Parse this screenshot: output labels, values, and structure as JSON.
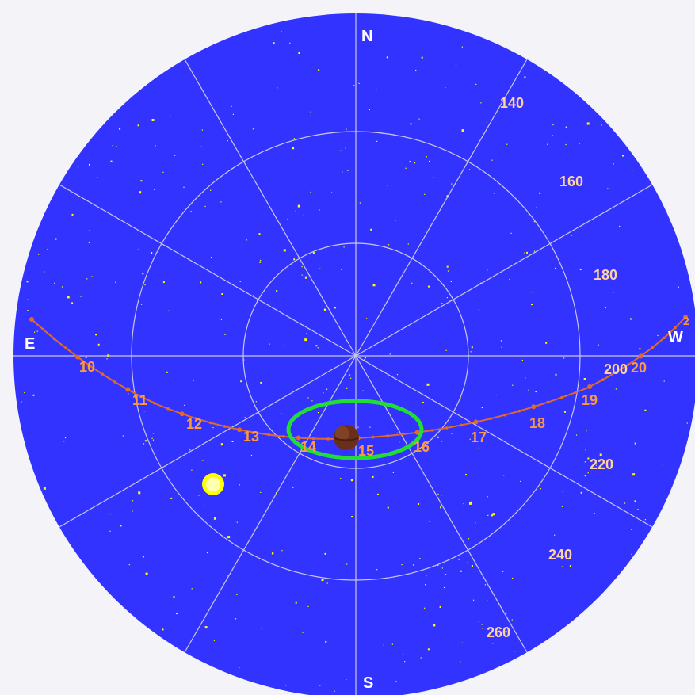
{
  "colors": {
    "page_bg": "#f4f4f8",
    "sky": "#3333ff",
    "grid": "#c8c8e6",
    "stars": "#ffff00",
    "compass_text": "#ffffff",
    "azimuth_text": "#ffd2a0",
    "path": "#e06a2a",
    "path_text": "#ff9a3a",
    "highlight": "#22dd33",
    "planet": "#6a2f1a",
    "sun": "#ffff00"
  },
  "compass": {
    "north": "N",
    "south": "S",
    "east": "E",
    "west": "W"
  },
  "azimuth_labels": [
    "140",
    "160",
    "180",
    "200",
    "220",
    "240",
    "260"
  ],
  "path_labels": [
    "10",
    "11",
    "12",
    "13",
    "14",
    "15",
    "16",
    "17",
    "18",
    "19",
    "20"
  ],
  "edge_label": "2",
  "icons": {
    "planet": "planet-icon",
    "sun": "sun-icon"
  }
}
